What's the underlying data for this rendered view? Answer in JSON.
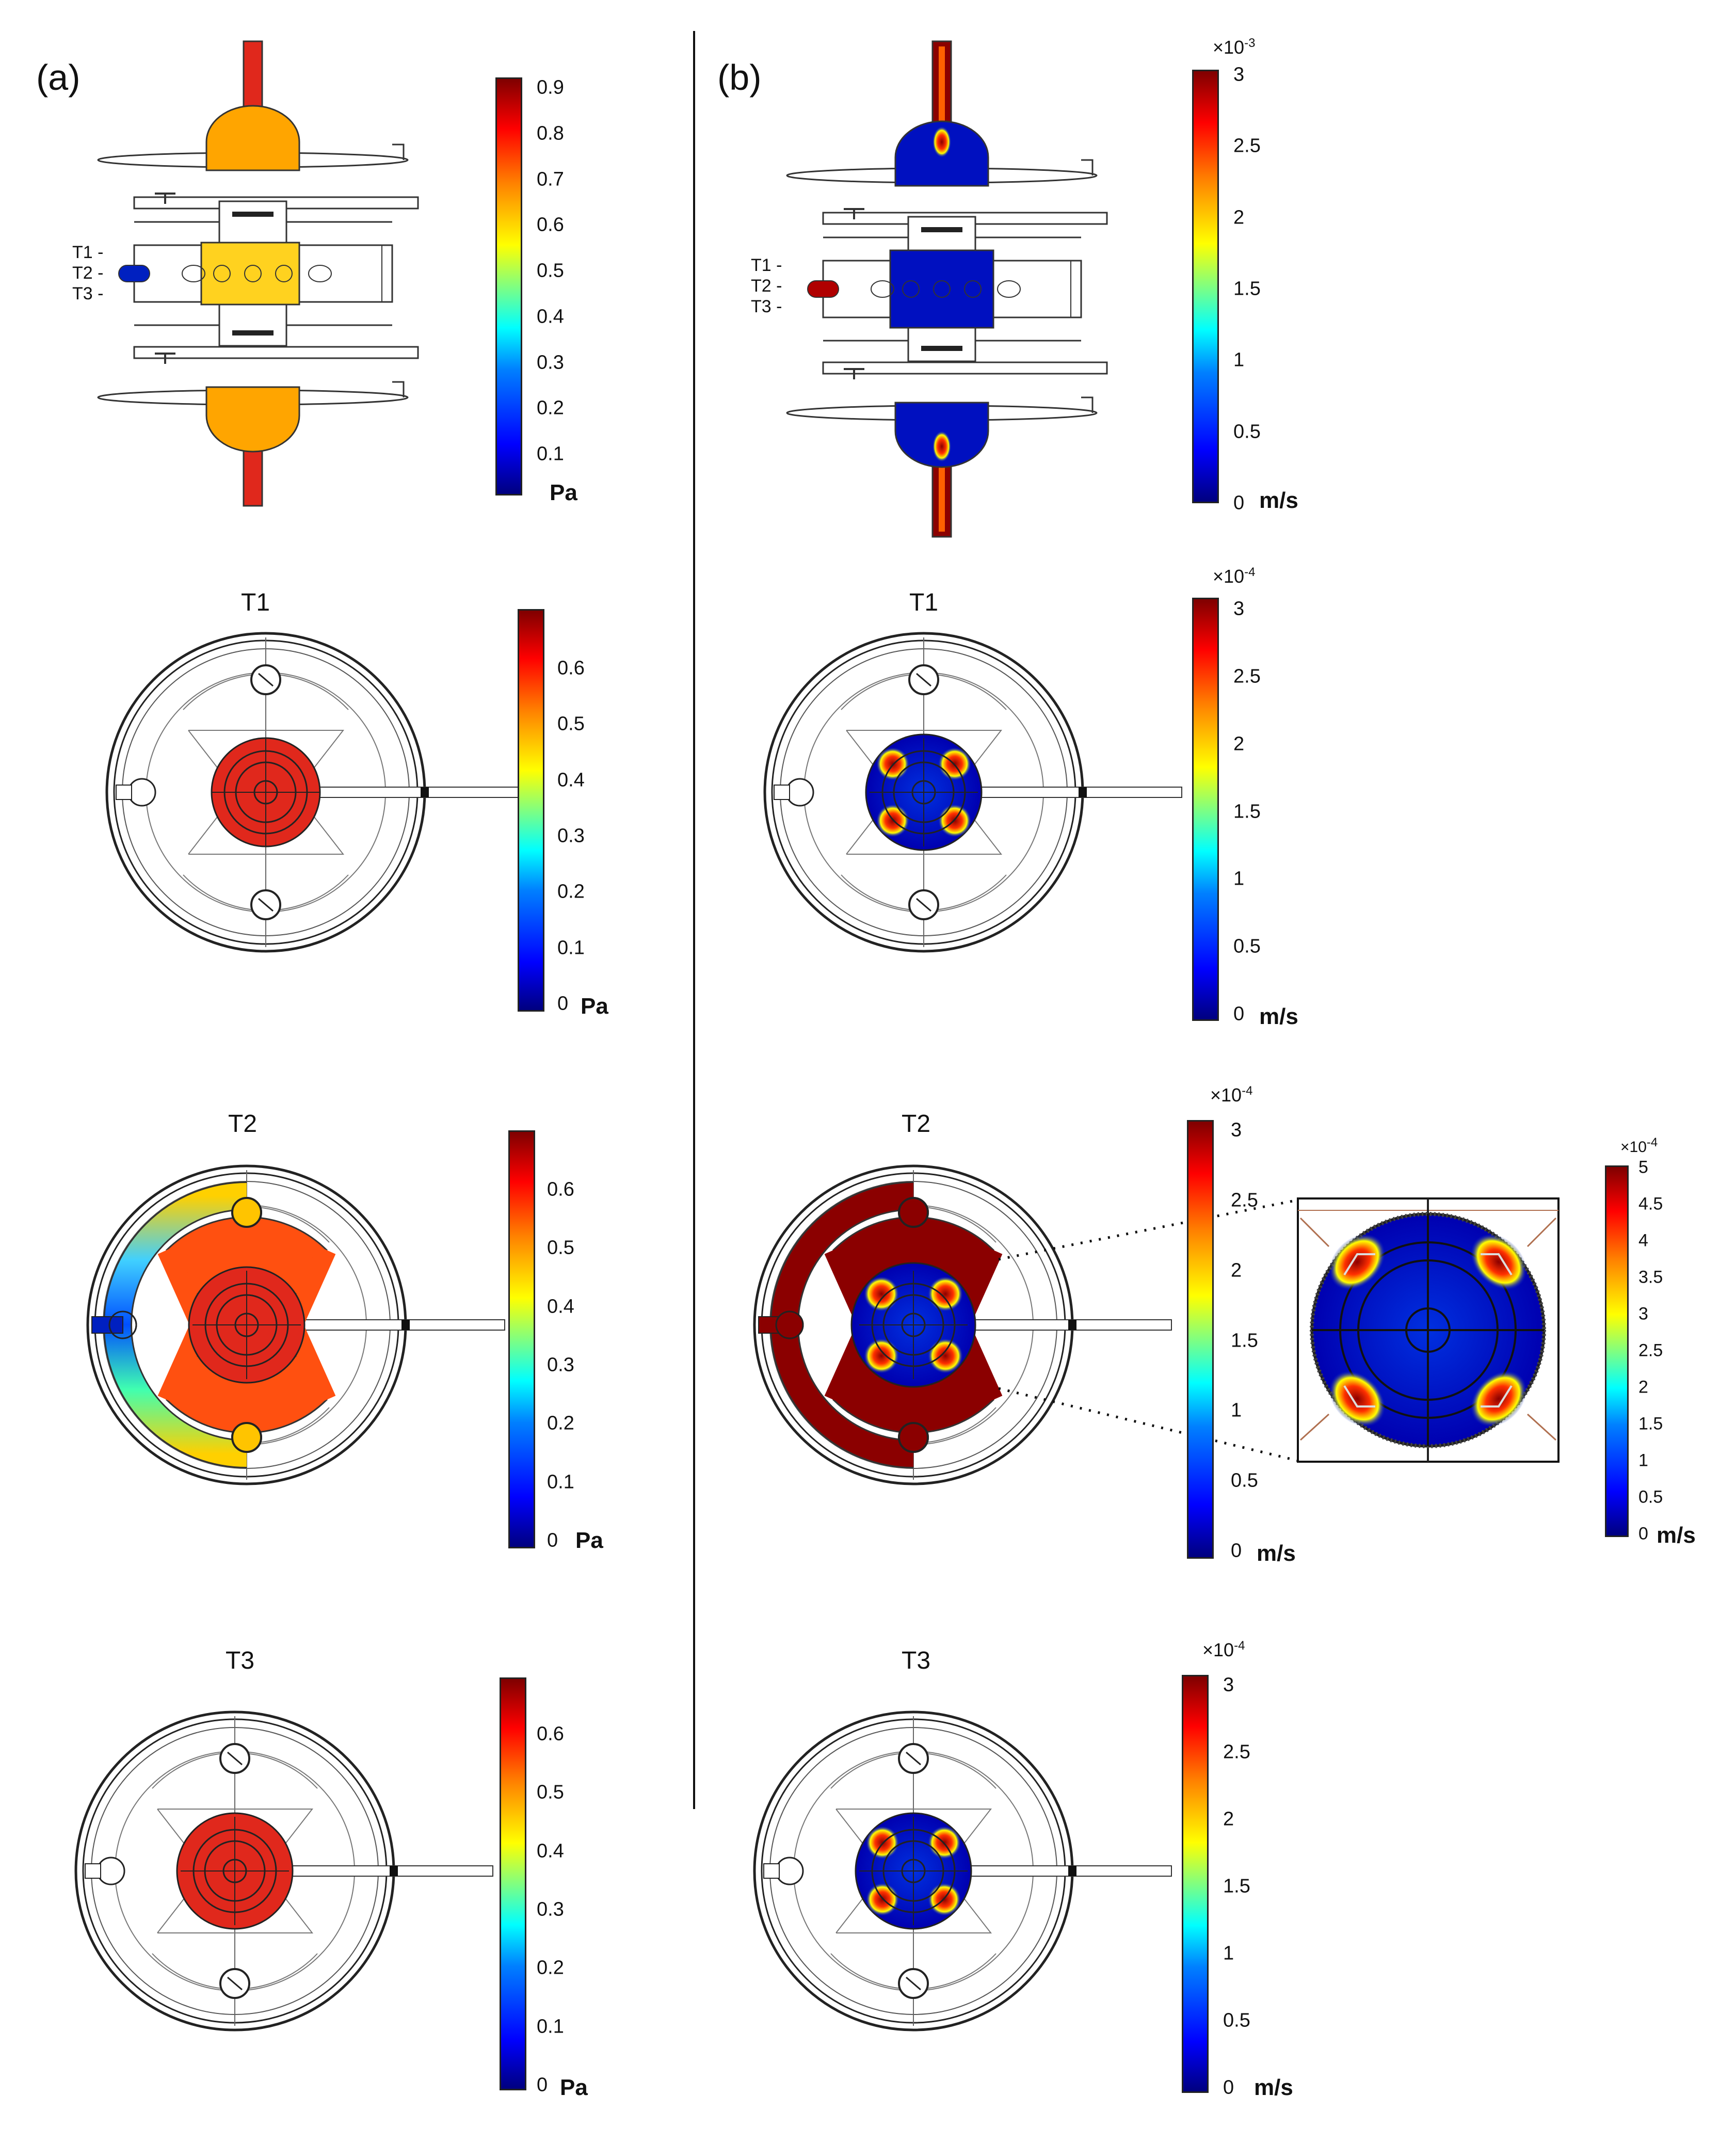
{
  "panels": {
    "a": {
      "label": "(a)",
      "overview": {
        "colorbar": {
          "ticks": [
            "0.9",
            "0.8",
            "0.7",
            "0.6",
            "0.5",
            "0.4",
            "0.3",
            "0.2",
            "0.1"
          ],
          "unit": "Pa"
        },
        "section_labels": [
          "T1 -",
          "T2 -",
          "T3 -"
        ]
      },
      "t1": {
        "title": "T1",
        "colorbar": {
          "ticks": [
            "0.6",
            "0.5",
            "0.4",
            "0.3",
            "0.2",
            "0.1",
            "0"
          ],
          "unit": "Pa"
        }
      },
      "t2": {
        "title": "T2",
        "colorbar": {
          "ticks": [
            "0.6",
            "0.5",
            "0.4",
            "0.3",
            "0.2",
            "0.1",
            "0"
          ],
          "unit": "Pa"
        }
      },
      "t3": {
        "title": "T3",
        "colorbar": {
          "ticks": [
            "0.6",
            "0.5",
            "0.4",
            "0.3",
            "0.2",
            "0.1",
            "0"
          ],
          "unit": "Pa"
        }
      }
    },
    "b": {
      "label": "(b)",
      "overview": {
        "colorbar": {
          "multiplier": "×10",
          "exponent": "-3",
          "ticks": [
            "3",
            "2.5",
            "2",
            "1.5",
            "1",
            "0.5",
            "0"
          ],
          "unit": "m/s"
        },
        "section_labels": [
          "T1 -",
          "T2 -",
          "T3 -"
        ]
      },
      "t1": {
        "title": "T1",
        "colorbar": {
          "multiplier": "×10",
          "exponent": "-4",
          "ticks": [
            "3",
            "2.5",
            "2",
            "1.5",
            "1",
            "0.5",
            "0"
          ],
          "unit": "m/s"
        }
      },
      "t2": {
        "title": "T2",
        "colorbar": {
          "multiplier": "×10",
          "exponent": "-4",
          "ticks": [
            "3",
            "2.5",
            "2",
            "1.5",
            "1",
            "0.5",
            "0"
          ],
          "unit": "m/s"
        },
        "zoom_colorbar": {
          "multiplier": "×10",
          "exponent": "-4",
          "ticks": [
            "5",
            "4.5",
            "4",
            "3.5",
            "3",
            "2.5",
            "2",
            "1.5",
            "1",
            "0.5",
            "0"
          ],
          "unit": "m/s"
        }
      },
      "t3": {
        "title": "T3",
        "colorbar": {
          "multiplier": "×10",
          "exponent": "-4",
          "ticks": [
            "3",
            "2.5",
            "2",
            "1.5",
            "1",
            "0.5",
            "0"
          ],
          "unit": "m/s"
        }
      }
    }
  },
  "colors": {
    "pressure_body": "#ffa500",
    "pressure_core": "#ffd21f",
    "pressure_pipe": "#e0281c",
    "hot": "#e02010",
    "deep_red": "#8b0000",
    "velocity_body": "#0000cc",
    "outline": "#222222"
  }
}
